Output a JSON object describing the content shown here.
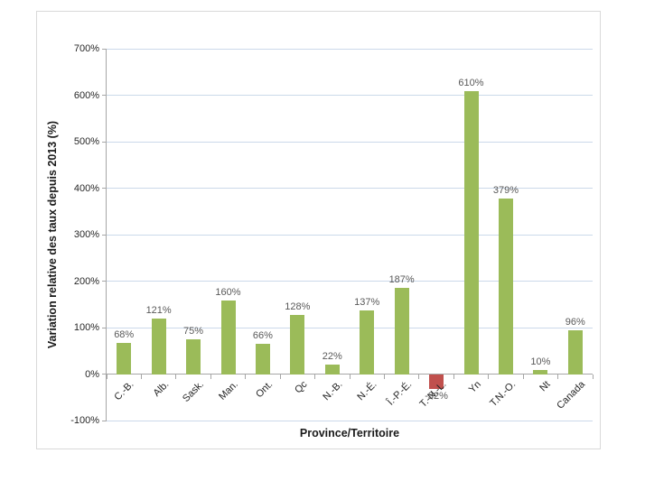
{
  "chart_data": {
    "type": "bar",
    "title": "",
    "xlabel": "Province/Territoire",
    "ylabel": "Variation relative des taux depuis 2013 (%)",
    "categories": [
      "C.-B.",
      "Alb.",
      "Sask.",
      "Man.",
      "Ont.",
      "Qc",
      "N.-B.",
      "N.-É.",
      "Î.-P.-É.",
      "T.-N.-L.",
      "Yn",
      "T.N.-O.",
      "Nt",
      "Canada"
    ],
    "values": [
      68,
      121,
      75,
      160,
      66,
      128,
      22,
      137,
      187,
      -32,
      610,
      379,
      10,
      96
    ],
    "data_labels": [
      "68%",
      "121%",
      "75%",
      "160%",
      "66%",
      "128%",
      "22%",
      "137%",
      "187%",
      "-32%",
      "610%",
      "379%",
      "10%",
      "96%"
    ],
    "ylim": [
      -100,
      700
    ],
    "ytick_step": 100,
    "ytick_labels": [
      "700%",
      "600%",
      "500%",
      "400%",
      "300%",
      "200%",
      "100%",
      "0%",
      "-100%"
    ],
    "grid": true,
    "legend": "none",
    "bar_color": "#9bbb59",
    "negative_bar_color": "#c0504d",
    "gridline_color": "#cbd9ea",
    "axis_color": "#a6a6a6",
    "data_label_color": "#595959",
    "tick_label_color": "#262626",
    "chart_border_color": "#d9d9d9"
  }
}
